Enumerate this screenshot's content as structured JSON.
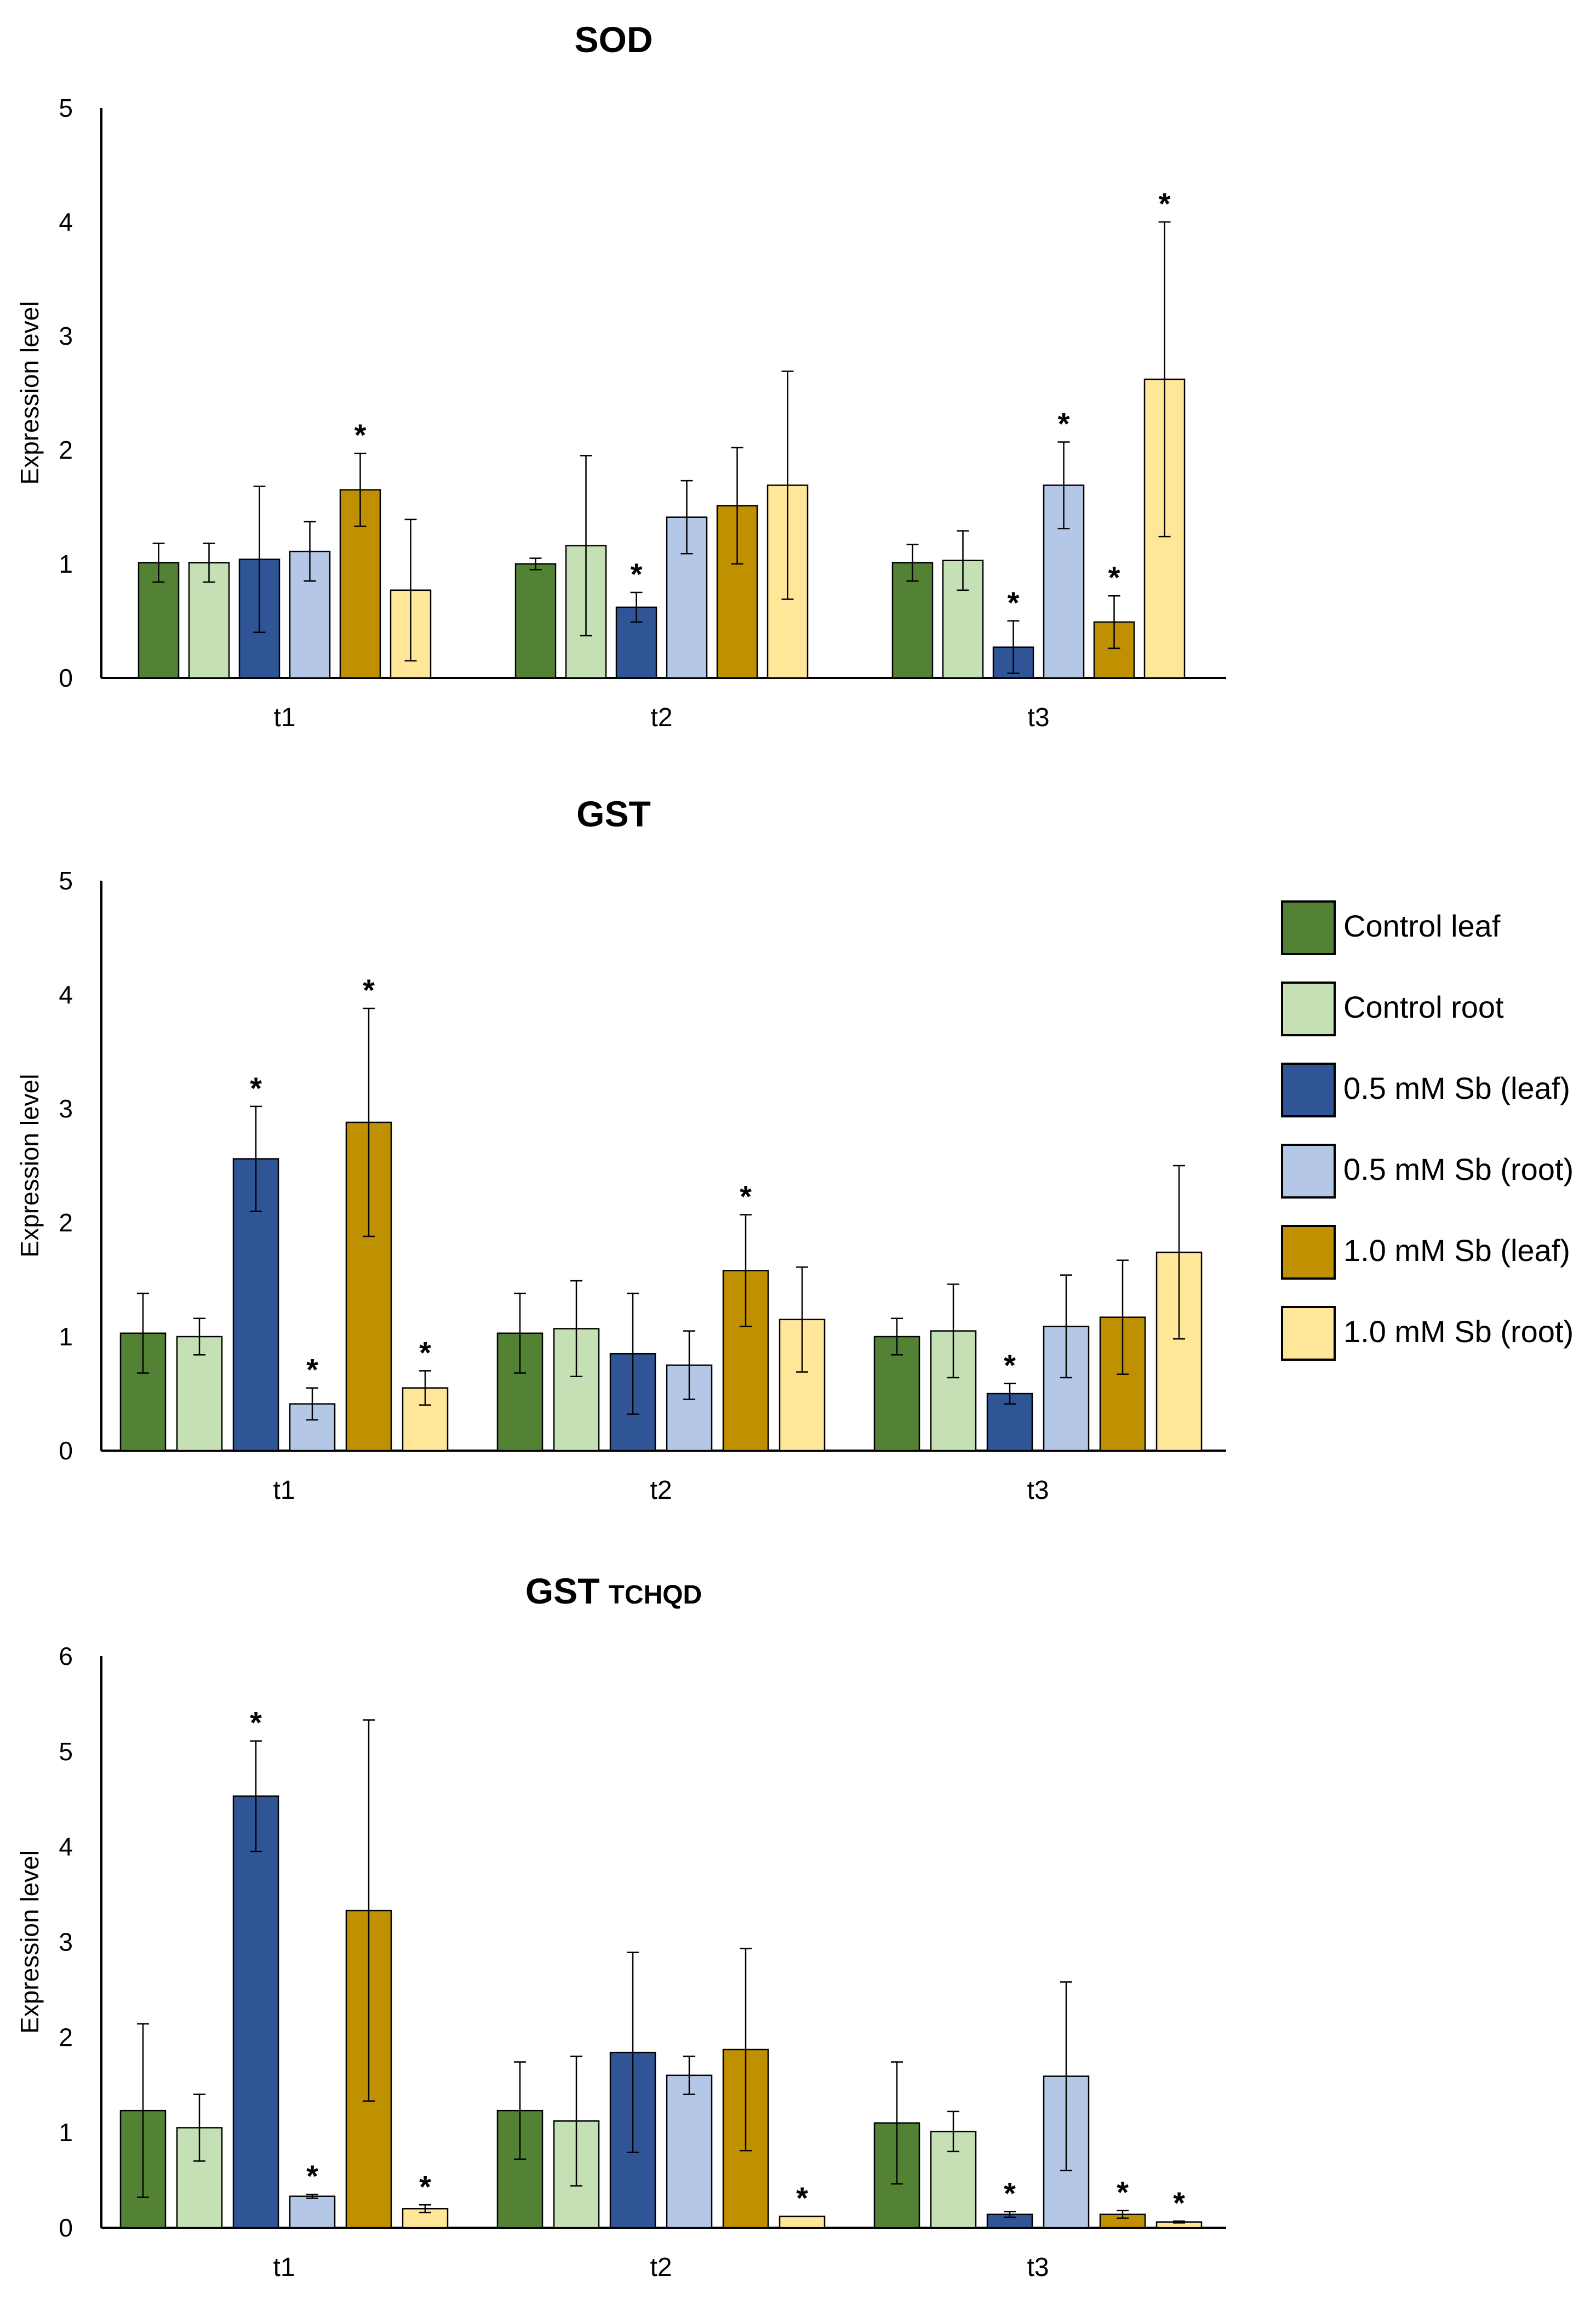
{
  "legend": [
    {
      "name": "Control leaf",
      "color": "#548235"
    },
    {
      "name": "Control root",
      "color": "#c5e0b4"
    },
    {
      "name": "0.5 mM Sb (leaf)",
      "color": "#2f5597"
    },
    {
      "name": "0.5 mM Sb (root)",
      "color": "#b4c7e7"
    },
    {
      "name": "1.0 mM Sb (leaf)",
      "color": "#bf9000"
    },
    {
      "name": "1.0 mM Sb (root)",
      "color": "#ffe699"
    }
  ],
  "chart_data": [
    {
      "type": "bar",
      "title": "SOD",
      "title_sub": "",
      "ylabel": "Expression level",
      "xlabel": "",
      "categories": [
        "t1",
        "t2",
        "t3"
      ],
      "ylim": [
        0,
        5
      ],
      "yticks": [
        0,
        1,
        2,
        3,
        4,
        5
      ],
      "series": [
        {
          "name": "Control leaf",
          "values": [
            1.01,
            1.0,
            1.01
          ],
          "errors": [
            0.17,
            0.05,
            0.16
          ],
          "sig": [
            false,
            false,
            false
          ]
        },
        {
          "name": "Control root",
          "values": [
            1.01,
            1.16,
            1.03
          ],
          "errors": [
            0.17,
            0.79,
            0.26
          ],
          "sig": [
            false,
            false,
            false
          ]
        },
        {
          "name": "0.5 mM Sb (leaf)",
          "values": [
            1.04,
            0.62,
            0.27
          ],
          "errors": [
            0.64,
            0.13,
            0.23
          ],
          "sig": [
            false,
            true,
            true
          ]
        },
        {
          "name": "0.5 mM Sb (root)",
          "values": [
            1.11,
            1.41,
            1.69
          ],
          "errors": [
            0.26,
            0.32,
            0.38
          ],
          "sig": [
            false,
            false,
            true
          ]
        },
        {
          "name": "1.0 mM Sb (leaf)",
          "values": [
            1.65,
            1.51,
            0.49
          ],
          "errors": [
            0.32,
            0.51,
            0.23
          ],
          "sig": [
            true,
            false,
            true
          ]
        },
        {
          "name": "1.0 mM Sb (root)",
          "values": [
            0.77,
            1.69,
            2.62
          ],
          "errors": [
            0.62,
            1.0,
            1.38
          ],
          "sig": [
            false,
            false,
            true
          ]
        }
      ]
    },
    {
      "type": "bar",
      "title": "GST",
      "title_sub": "",
      "ylabel": "Expression level",
      "xlabel": "",
      "categories": [
        "t1",
        "t2",
        "t3"
      ],
      "ylim": [
        0,
        5
      ],
      "yticks": [
        0,
        1,
        2,
        3,
        4,
        5
      ],
      "series": [
        {
          "name": "Control leaf",
          "values": [
            1.03,
            1.03,
            1.0
          ],
          "errors": [
            0.35,
            0.35,
            0.16
          ],
          "sig": [
            false,
            false,
            false
          ]
        },
        {
          "name": "Control root",
          "values": [
            1.0,
            1.07,
            1.05
          ],
          "errors": [
            0.16,
            0.42,
            0.41
          ],
          "sig": [
            false,
            false,
            false
          ]
        },
        {
          "name": "0.5 mM Sb (leaf)",
          "values": [
            2.56,
            0.85,
            0.5
          ],
          "errors": [
            0.46,
            0.53,
            0.09
          ],
          "sig": [
            true,
            false,
            true
          ]
        },
        {
          "name": "0.5 mM Sb (root)",
          "values": [
            0.41,
            0.75,
            1.09
          ],
          "errors": [
            0.14,
            0.3,
            0.45
          ],
          "sig": [
            true,
            false,
            false
          ]
        },
        {
          "name": "1.0 mM Sb (leaf)",
          "values": [
            2.88,
            1.58,
            1.17
          ],
          "errors": [
            1.0,
            0.49,
            0.5
          ],
          "sig": [
            true,
            true,
            false
          ]
        },
        {
          "name": "1.0 mM Sb (root)",
          "values": [
            0.55,
            1.15,
            1.74
          ],
          "errors": [
            0.15,
            0.46,
            0.76
          ],
          "sig": [
            true,
            false,
            false
          ]
        }
      ]
    },
    {
      "type": "bar",
      "title": "GST",
      "title_sub": "TCHQD",
      "ylabel": "Expression level",
      "xlabel": "",
      "categories": [
        "t1",
        "t2",
        "t3"
      ],
      "ylim": [
        0,
        6
      ],
      "yticks": [
        0,
        1,
        2,
        3,
        4,
        5,
        6
      ],
      "series": [
        {
          "name": "Control leaf",
          "values": [
            1.23,
            1.23,
            1.1
          ],
          "errors": [
            0.91,
            0.51,
            0.64
          ],
          "sig": [
            false,
            false,
            false
          ]
        },
        {
          "name": "Control root",
          "values": [
            1.05,
            1.12,
            1.01
          ],
          "errors": [
            0.35,
            0.68,
            0.21
          ],
          "sig": [
            false,
            false,
            false
          ]
        },
        {
          "name": "0.5 mM Sb (leaf)",
          "values": [
            4.53,
            1.84,
            0.14
          ],
          "errors": [
            0.58,
            1.05,
            0.03
          ],
          "sig": [
            true,
            false,
            true
          ]
        },
        {
          "name": "0.5 mM Sb (root)",
          "values": [
            0.33,
            1.6,
            1.59
          ],
          "errors": [
            0.02,
            0.2,
            0.99
          ],
          "sig": [
            true,
            false,
            false
          ]
        },
        {
          "name": "1.0 mM Sb (leaf)",
          "values": [
            3.33,
            1.87,
            0.14
          ],
          "errors": [
            2.0,
            1.06,
            0.04
          ],
          "sig": [
            false,
            false,
            true
          ]
        },
        {
          "name": "1.0 mM Sb (root)",
          "values": [
            0.2,
            0.12,
            0.06
          ],
          "errors": [
            0.04,
            0.0,
            0.01
          ],
          "sig": [
            true,
            true,
            true
          ]
        }
      ]
    }
  ]
}
